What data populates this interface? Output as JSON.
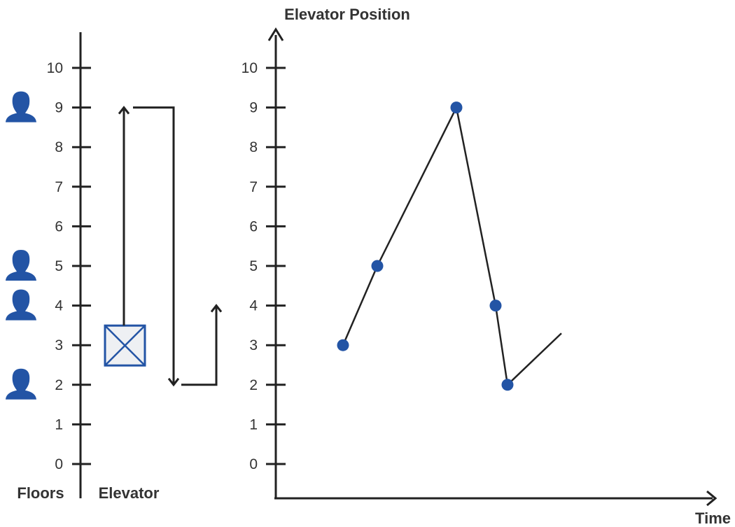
{
  "left_panel": {
    "floor_labels": [
      "0",
      "1",
      "2",
      "3",
      "4",
      "5",
      "6",
      "7",
      "8",
      "9",
      "10"
    ],
    "floors_caption": "Floors",
    "elevator_caption": "Elevator",
    "people_floors": [
      9,
      5,
      4,
      2
    ],
    "elevator_car_floor": 3,
    "path_floors": [
      3,
      9,
      2,
      4
    ]
  },
  "chart_data": {
    "type": "line",
    "title": "Elevator Position",
    "xlabel": "Time",
    "ylabel": "Elevator Position",
    "yticks": [
      "0",
      "1",
      "2",
      "3",
      "4",
      "5",
      "6",
      "7",
      "8",
      "9",
      "10"
    ],
    "ylim": [
      0,
      10
    ],
    "series": [
      {
        "values": [
          3,
          5,
          9,
          4,
          2
        ]
      }
    ],
    "trailing_segment": {
      "from": 2,
      "direction": "up",
      "to_approx": 3.3
    },
    "grid": false
  },
  "colors": {
    "accent": "#2354a5",
    "line": "#222222",
    "car_fill": "#eef0f3",
    "text": "#333333"
  },
  "icons": {
    "person": "person-icon",
    "elevator_car": "elevator-car-icon"
  }
}
